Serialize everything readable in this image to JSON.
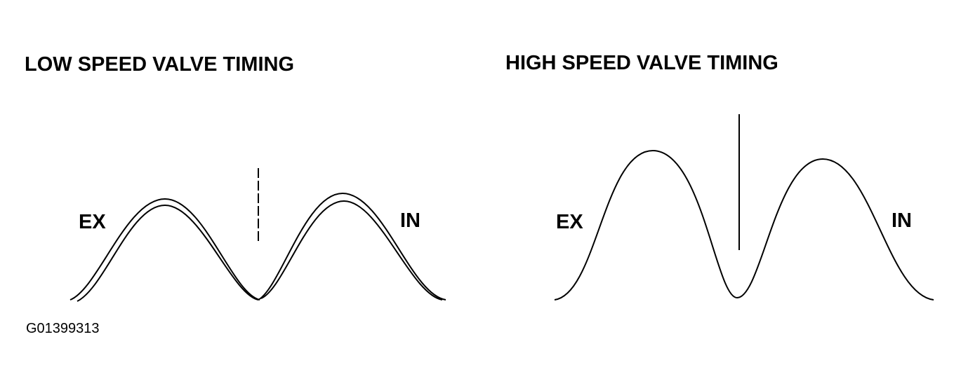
{
  "diagrams": [
    {
      "title": "LOW SPEED VALVE TIMING",
      "left_label": "EX",
      "right_label": "IN"
    },
    {
      "title": "HIGH SPEED VALVE TIMING",
      "left_label": "EX",
      "right_label": "IN"
    }
  ],
  "figure_id": "G01399313"
}
